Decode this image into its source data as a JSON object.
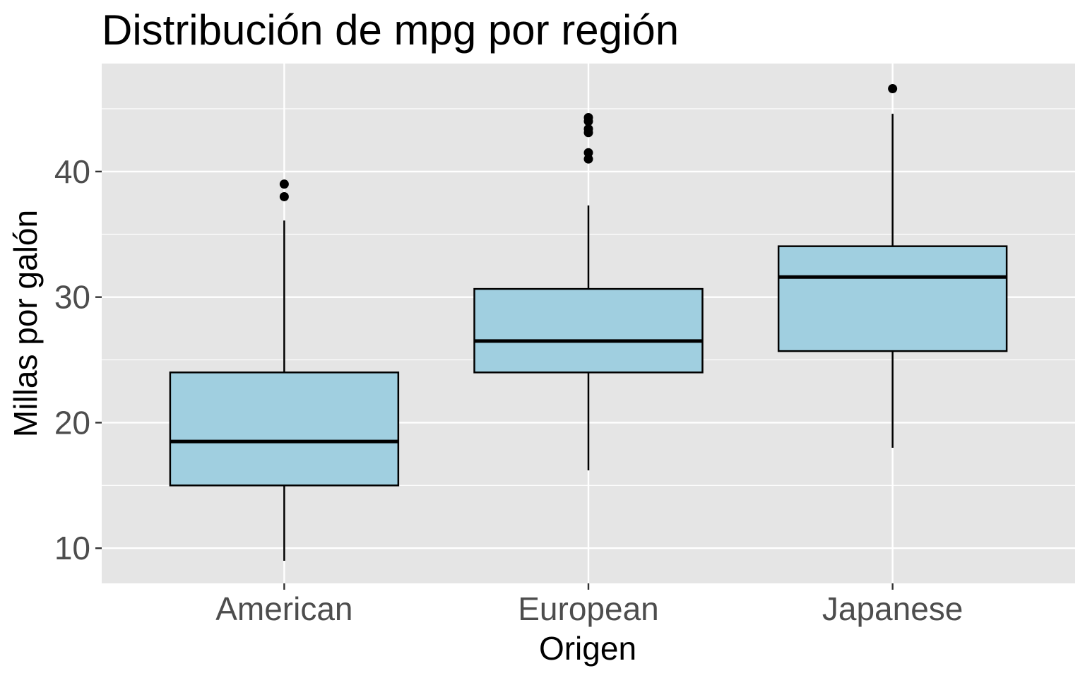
{
  "chart_data": {
    "type": "box",
    "title": "Distribución de mpg por región",
    "xlabel": "Origen",
    "ylabel": "Millas por galón",
    "categories": [
      "American",
      "European",
      "Japanese"
    ],
    "yticks": [
      10,
      20,
      30,
      40
    ],
    "ylim": [
      7.2,
      48.6
    ],
    "grid": true,
    "legend": "none",
    "series": [
      {
        "values": [
          {
            "whisker_low": 9.0,
            "q1": 15.0,
            "median": 18.5,
            "q3": 24.0,
            "whisker_high": 36.1,
            "outliers": [
              38.0,
              39.0
            ]
          },
          {
            "whisker_low": 16.2,
            "q1": 24.0,
            "median": 26.5,
            "q3": 30.65,
            "whisker_high": 37.3,
            "outliers": [
              41.0,
              41.5,
              43.1,
              43.4,
              44.0,
              44.3
            ]
          },
          {
            "whisker_low": 18.0,
            "q1": 25.7,
            "median": 31.6,
            "q3": 34.05,
            "whisker_high": 44.6,
            "outliers": [
              46.6
            ]
          }
        ]
      }
    ],
    "colors": {
      "panel": "#e5e5e5",
      "grid": "#ffffff",
      "box_fill": "#a0cfe0",
      "box_stroke": "#000000"
    }
  }
}
